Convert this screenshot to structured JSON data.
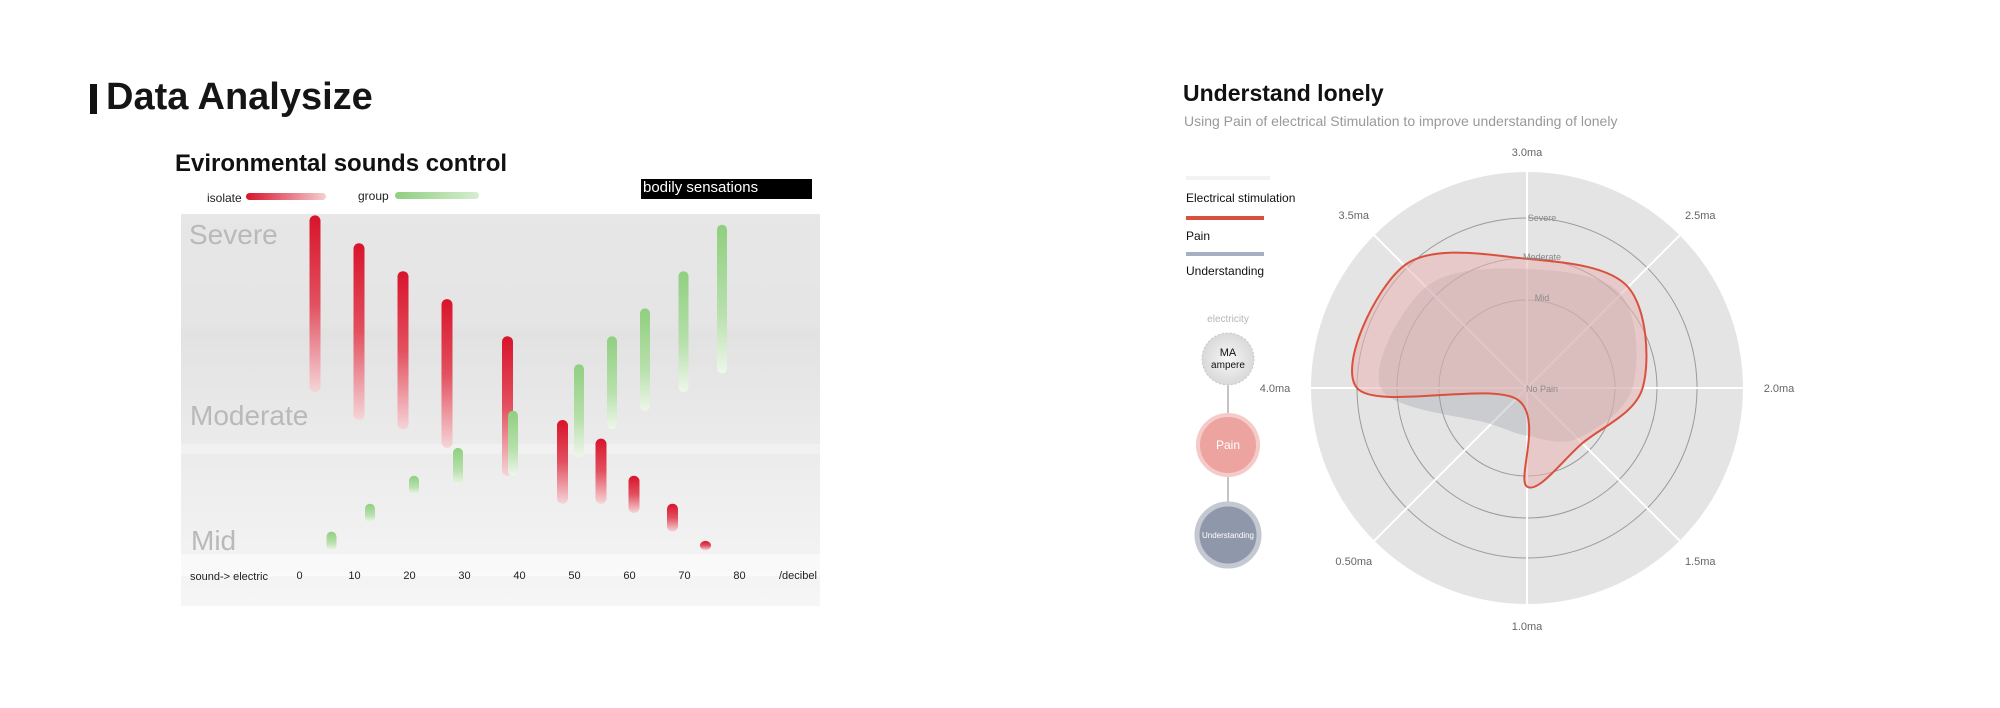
{
  "page": {
    "title": "Data Analysize"
  },
  "left_panel": {
    "title": "Evironmental sounds control",
    "legend": [
      {
        "label": "isolate",
        "color": "#d8142b"
      },
      {
        "label": "group",
        "color": "#8fcf7f"
      }
    ],
    "tag": "bodily sensations",
    "bands": [
      "Severe",
      "Moderate",
      "Mid"
    ],
    "x_axis_start": "sound-> electric",
    "x_axis_end": "/decibel"
  },
  "right_panel": {
    "title": "Understand lonely",
    "subtitle": "Using Pain of electrical Stimulation to improve understanding of  lonely",
    "legend": [
      {
        "label": "Electrical stimulation",
        "color": "#ffffff"
      },
      {
        "label": "Pain",
        "color": "#d9503d"
      },
      {
        "label": "Understanding",
        "color": "#a7b0c2"
      }
    ],
    "flow": {
      "caption": "electricity",
      "node1_line1": "MA",
      "node1_line2": "ampere",
      "node2": "Pain",
      "node3": "Understanding"
    },
    "rings": [
      "Severe",
      "Moderate",
      "Mid",
      "No Pain"
    ]
  },
  "chart_data": [
    {
      "type": "bar",
      "title": "Evironmental sounds control",
      "xlabel": "/decibel",
      "x_ticks": [
        0,
        10,
        20,
        30,
        40,
        50,
        60,
        70,
        80
      ],
      "y_bands": [
        "Mid",
        "Moderate",
        "Severe"
      ],
      "series": [
        {
          "name": "isolate",
          "color": "#d8142b",
          "x": [
            2,
            10,
            18,
            26,
            37,
            47,
            54,
            60,
            67,
            73
          ],
          "top": [
            3.0,
            2.85,
            2.7,
            2.55,
            2.35,
            1.9,
            1.8,
            1.6,
            1.45,
            1.25
          ],
          "bottom": [
            2.05,
            1.9,
            1.85,
            1.75,
            1.6,
            1.45,
            1.45,
            1.4,
            1.3,
            1.2
          ]
        },
        {
          "name": "group",
          "color": "#8fcf7f",
          "x": [
            5,
            12,
            20,
            28,
            38,
            50,
            56,
            62,
            69,
            76
          ],
          "top": [
            1.3,
            1.45,
            1.6,
            1.75,
            1.95,
            2.2,
            2.35,
            2.5,
            2.7,
            2.95
          ],
          "bottom": [
            1.2,
            1.35,
            1.5,
            1.55,
            1.6,
            1.7,
            1.85,
            1.95,
            2.05,
            2.15
          ]
        }
      ]
    },
    {
      "type": "radar",
      "title": "Understand lonely",
      "axes": [
        "3.0ma",
        "2.5ma",
        "2.0ma",
        "1.5ma",
        "1.0ma",
        "0.50ma",
        "4.0ma",
        "3.5ma"
      ],
      "ring_labels": [
        "No Pain",
        "Mid",
        "Moderate",
        "Severe"
      ],
      "series": [
        {
          "name": "Pain",
          "color": "#d9503d",
          "values": [
            0.76,
            0.84,
            0.68,
            0.46,
            0.58,
            0.09,
            1.0,
            1.02
          ]
        },
        {
          "name": "Understanding",
          "color": "#a7b0c2",
          "values": [
            0.7,
            0.78,
            0.62,
            0.42,
            0.28,
            0.3,
            0.86,
            0.84
          ]
        }
      ]
    }
  ]
}
